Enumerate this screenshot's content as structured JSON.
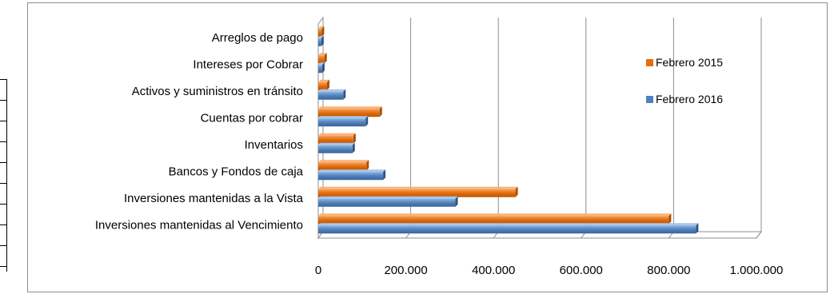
{
  "chart_data": {
    "type": "bar",
    "orientation": "horizontal",
    "categories": [
      "Inversiones mantenidas al Vencimiento",
      "Inversiones mantenidas a la Vista",
      "Bancos y Fondos de caja",
      "Inventarios",
      "Cuentas por cobrar",
      "Activos y suministros en tránsito",
      "Intereses por Cobrar",
      "Arreglos de pago"
    ],
    "series": [
      {
        "name": "Febrero 2015",
        "color": "#E46C0A",
        "values": [
          800000,
          450000,
          110000,
          80000,
          140000,
          20000,
          14000,
          8000
        ]
      },
      {
        "name": "Febrero 2016",
        "color": "#4F81BD",
        "values": [
          862000,
          313000,
          148000,
          78000,
          108000,
          57000,
          9000,
          7000
        ]
      }
    ],
    "xlim": [
      0,
      1000000
    ],
    "xticks": [
      "0",
      "200.000",
      "400.000",
      "600.000",
      "800.000",
      "1.000.000"
    ],
    "xtick_values": [
      0,
      200000,
      400000,
      600000,
      800000,
      1000000
    ],
    "grid": true,
    "legend_position": "right",
    "title": "",
    "xlabel": "",
    "ylabel": ""
  }
}
